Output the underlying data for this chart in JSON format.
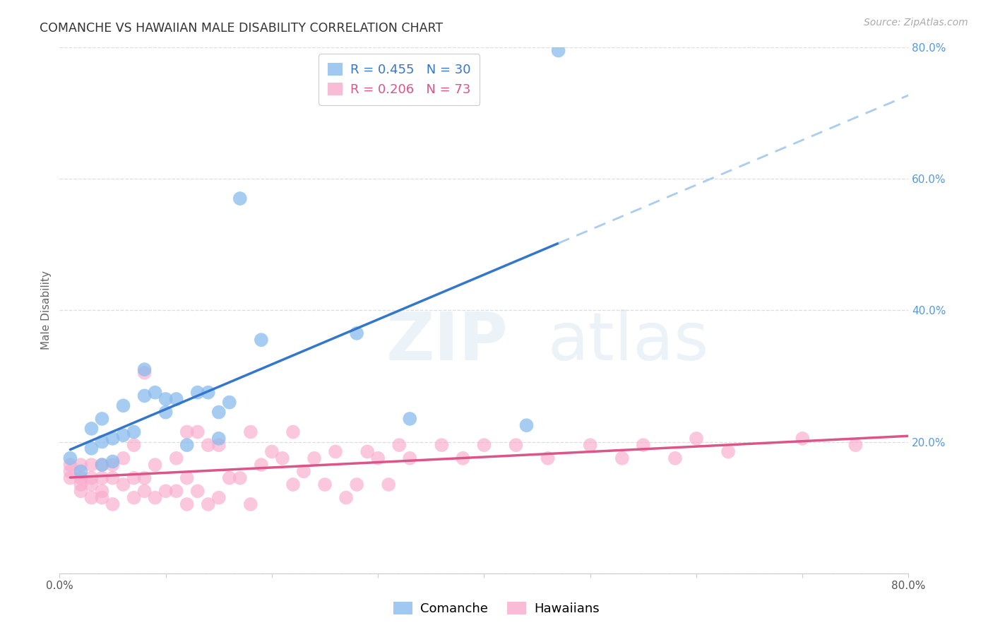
{
  "title": "COMANCHE VS HAWAIIAN MALE DISABILITY CORRELATION CHART",
  "source": "Source: ZipAtlas.com",
  "ylabel": "Male Disability",
  "xlim": [
    0.0,
    0.8
  ],
  "ylim": [
    0.0,
    0.8
  ],
  "comanche_color": "#88bbee",
  "hawaiian_color": "#f8aacc",
  "comanche_line_color": "#3377cc",
  "hawaiian_line_color": "#dd5588",
  "dashed_line_color": "#aaccee",
  "comanche_R": 0.455,
  "comanche_N": 30,
  "hawaiian_R": 0.206,
  "hawaiian_N": 73,
  "comanche_x": [
    0.01,
    0.02,
    0.03,
    0.03,
    0.04,
    0.04,
    0.04,
    0.05,
    0.05,
    0.06,
    0.06,
    0.07,
    0.08,
    0.08,
    0.09,
    0.1,
    0.1,
    0.11,
    0.12,
    0.13,
    0.14,
    0.15,
    0.15,
    0.16,
    0.17,
    0.19,
    0.28,
    0.33,
    0.44,
    0.47
  ],
  "comanche_y": [
    0.175,
    0.155,
    0.19,
    0.22,
    0.165,
    0.2,
    0.235,
    0.17,
    0.205,
    0.255,
    0.21,
    0.215,
    0.27,
    0.31,
    0.275,
    0.245,
    0.265,
    0.265,
    0.195,
    0.275,
    0.275,
    0.205,
    0.245,
    0.26,
    0.57,
    0.355,
    0.365,
    0.235,
    0.225,
    0.795
  ],
  "hawaiian_x": [
    0.01,
    0.01,
    0.01,
    0.02,
    0.02,
    0.02,
    0.02,
    0.03,
    0.03,
    0.03,
    0.03,
    0.04,
    0.04,
    0.04,
    0.04,
    0.05,
    0.05,
    0.05,
    0.06,
    0.06,
    0.07,
    0.07,
    0.07,
    0.08,
    0.08,
    0.08,
    0.09,
    0.09,
    0.1,
    0.11,
    0.11,
    0.12,
    0.12,
    0.12,
    0.13,
    0.13,
    0.14,
    0.14,
    0.15,
    0.15,
    0.16,
    0.17,
    0.18,
    0.18,
    0.19,
    0.2,
    0.21,
    0.22,
    0.22,
    0.23,
    0.24,
    0.25,
    0.26,
    0.27,
    0.28,
    0.29,
    0.3,
    0.31,
    0.32,
    0.33,
    0.36,
    0.38,
    0.4,
    0.43,
    0.46,
    0.5,
    0.53,
    0.55,
    0.58,
    0.6,
    0.63,
    0.7,
    0.75
  ],
  "hawaiian_y": [
    0.145,
    0.155,
    0.165,
    0.125,
    0.135,
    0.145,
    0.165,
    0.115,
    0.135,
    0.145,
    0.165,
    0.115,
    0.125,
    0.145,
    0.165,
    0.105,
    0.145,
    0.165,
    0.135,
    0.175,
    0.115,
    0.145,
    0.195,
    0.125,
    0.145,
    0.305,
    0.115,
    0.165,
    0.125,
    0.125,
    0.175,
    0.105,
    0.145,
    0.215,
    0.125,
    0.215,
    0.105,
    0.195,
    0.115,
    0.195,
    0.145,
    0.145,
    0.105,
    0.215,
    0.165,
    0.185,
    0.175,
    0.135,
    0.215,
    0.155,
    0.175,
    0.135,
    0.185,
    0.115,
    0.135,
    0.185,
    0.175,
    0.135,
    0.195,
    0.175,
    0.195,
    0.175,
    0.195,
    0.195,
    0.175,
    0.195,
    0.175,
    0.195,
    0.175,
    0.205,
    0.185,
    0.205,
    0.195
  ],
  "watermark_zip": "ZIP",
  "watermark_atlas": "atlas",
  "background_color": "#ffffff",
  "grid_color": "#dddddd",
  "ytick_color": "#5599dd",
  "xtick_color": "#555555"
}
